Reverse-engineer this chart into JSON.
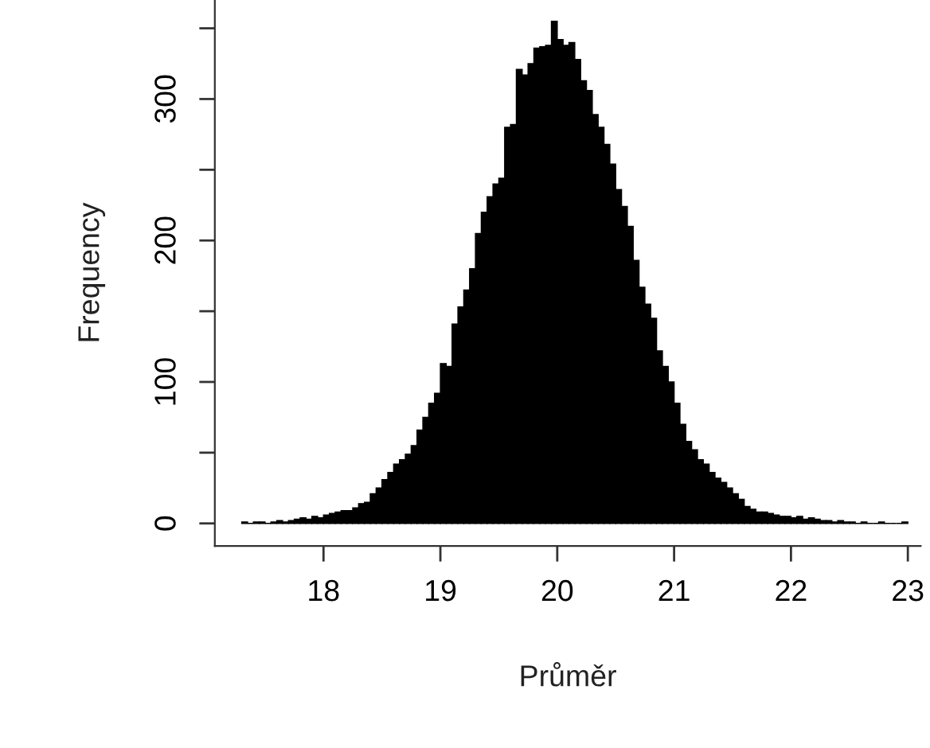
{
  "chart_data": {
    "type": "histogram",
    "xlabel": "Průměr",
    "ylabel": "Frequency",
    "color": "#000000",
    "bins": [
      17.3,
      17.35,
      17.4,
      17.45,
      17.5,
      17.55,
      17.6,
      17.65,
      17.7,
      17.75,
      17.8,
      17.85,
      17.9,
      17.95,
      18.0,
      18.05,
      18.1,
      18.15,
      18.2,
      18.25,
      18.3,
      18.35,
      18.4,
      18.45,
      18.5,
      18.55,
      18.6,
      18.65,
      18.7,
      18.75,
      18.8,
      18.85,
      18.9,
      18.95,
      19.0,
      19.05,
      19.1,
      19.15,
      19.2,
      19.25,
      19.3,
      19.35,
      19.4,
      19.45,
      19.5,
      19.55,
      19.6,
      19.65,
      19.7,
      19.75,
      19.8,
      19.85,
      19.9,
      19.95,
      20.0,
      20.05,
      20.1,
      20.15,
      20.2,
      20.25,
      20.3,
      20.35,
      20.4,
      20.45,
      20.5,
      20.55,
      20.6,
      20.65,
      20.7,
      20.75,
      20.8,
      20.85,
      20.9,
      20.95,
      21.0,
      21.05,
      21.1,
      21.15,
      21.2,
      21.25,
      21.3,
      21.35,
      21.4,
      21.45,
      21.5,
      21.55,
      21.6,
      21.65,
      21.7,
      21.75,
      21.8,
      21.85,
      21.9,
      21.95,
      22.0,
      22.05,
      22.1,
      22.15,
      22.2,
      22.25,
      22.3,
      22.35,
      22.4,
      22.45,
      22.5,
      22.55,
      22.6,
      22.65,
      22.7,
      22.75,
      22.8,
      22.85,
      22.9,
      22.95,
      23.0
    ],
    "values": [
      1,
      0,
      1,
      1,
      0,
      1,
      2,
      1,
      2,
      3,
      4,
      3,
      5,
      4,
      6,
      7,
      8,
      9,
      9,
      11,
      14,
      15,
      21,
      25,
      31,
      36,
      42,
      45,
      49,
      55,
      66,
      75,
      85,
      92,
      113,
      111,
      141,
      153,
      165,
      180,
      205,
      220,
      231,
      240,
      244,
      280,
      282,
      321,
      317,
      325,
      336,
      337,
      338,
      355,
      342,
      338,
      340,
      328,
      313,
      306,
      289,
      280,
      268,
      254,
      236,
      224,
      210,
      186,
      167,
      155,
      145,
      122,
      111,
      100,
      85,
      70,
      58,
      52,
      45,
      42,
      36,
      32,
      29,
      25,
      21,
      17,
      12,
      10,
      8,
      8,
      7,
      6,
      5,
      5,
      4,
      5,
      3,
      4,
      3,
      2,
      2,
      1,
      2,
      1,
      1,
      0,
      1,
      0,
      0,
      1,
      0,
      0,
      0,
      1
    ],
    "xlim": [
      17.07,
      23.11
    ],
    "ylim": [
      -16,
      370
    ],
    "xticks": [
      18,
      19,
      20,
      21,
      22,
      23
    ],
    "yticks": [
      0,
      {
        "value": 50,
        "label": null
      },
      100,
      {
        "value": 150,
        "label": null
      },
      200,
      {
        "value": 250,
        "label": null
      },
      300,
      {
        "value": 350,
        "label": null
      }
    ]
  }
}
